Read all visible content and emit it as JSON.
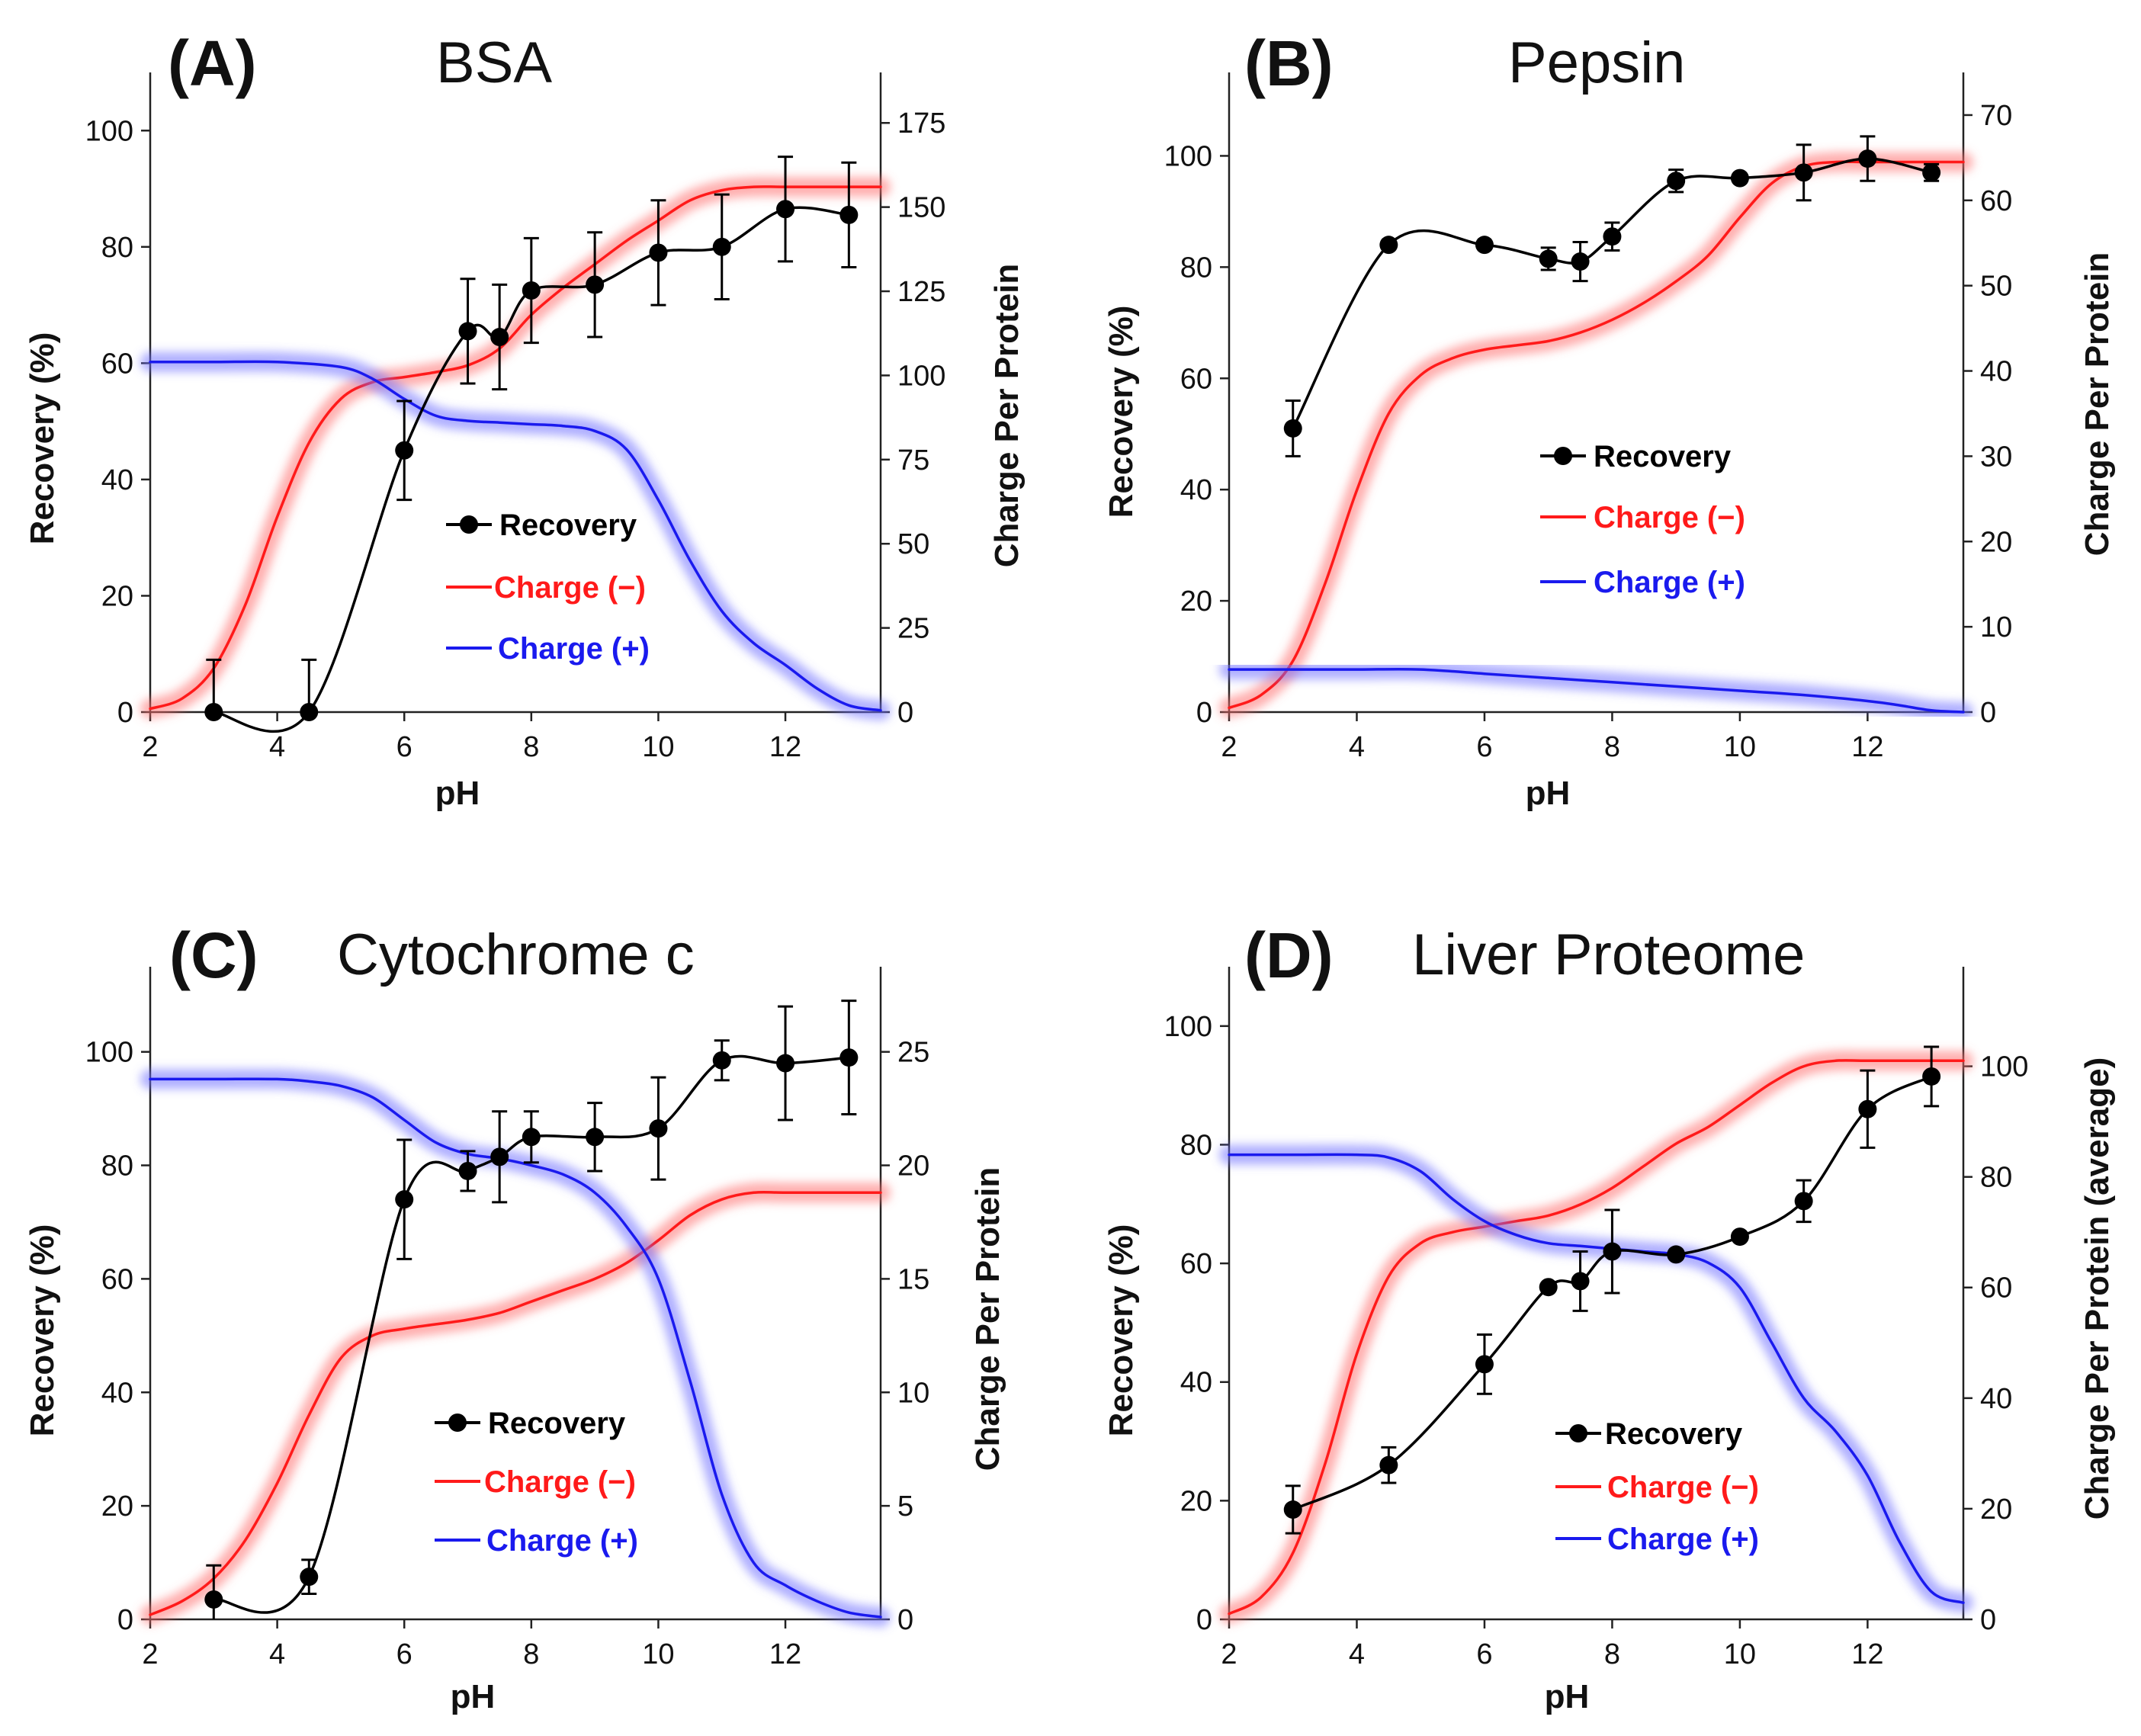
{
  "figure": {
    "legend": {
      "recovery": "Recovery",
      "charge_neg": "Charge (−)",
      "charge_pos": "Charge (+)"
    },
    "colors": {
      "recovery": "#000000",
      "charge_neg": "#ff1a1a",
      "charge_pos": "#1a1aee",
      "charge_neg_glow": "#ff7070",
      "charge_pos_glow": "#7070ff"
    }
  },
  "chart_data": [
    {
      "type": "line",
      "label": "(A)",
      "title": "BSA",
      "xlabel": "pH",
      "ylabel": "Recovery (%)",
      "y2label": "Charge Per Protein",
      "xlim": [
        2,
        13.5
      ],
      "ylim": [
        0,
        110
      ],
      "y2lim": [
        0,
        190
      ],
      "xticks": [
        2,
        4,
        6,
        8,
        10,
        12
      ],
      "yticks": [
        0,
        20,
        40,
        60,
        80,
        100
      ],
      "y2ticks": [
        0,
        25,
        50,
        75,
        100,
        125,
        150,
        175
      ],
      "recovery": {
        "x": [
          3,
          4.5,
          6,
          7,
          7.5,
          8,
          9,
          10,
          11,
          12,
          13
        ],
        "y": [
          0,
          0,
          45,
          65.5,
          64.5,
          72.5,
          73.5,
          79,
          80,
          86.5,
          85.5
        ],
        "err": [
          9,
          9,
          8.5,
          9,
          9,
          9,
          9,
          9,
          9,
          9,
          9
        ]
      },
      "charge_neg": {
        "x": [
          2,
          2.5,
          3,
          3.5,
          4,
          4.5,
          5,
          5.5,
          6,
          6.5,
          7,
          7.5,
          8,
          8.5,
          9,
          9.5,
          10,
          10.5,
          11,
          11.5,
          12,
          13,
          13.5
        ],
        "y": [
          1,
          4,
          13,
          32,
          58,
          80,
          93,
          98,
          99.5,
          101,
          103,
          108,
          118,
          126,
          133,
          140,
          146,
          152,
          155,
          156,
          156,
          156,
          156
        ]
      },
      "charge_pos": {
        "x": [
          2,
          3,
          4,
          5,
          5.5,
          6,
          6.5,
          7,
          7.5,
          8,
          8.5,
          9,
          9.5,
          10,
          10.5,
          11,
          11.5,
          12,
          12.5,
          13,
          13.5
        ],
        "y": [
          104,
          104,
          104,
          102.5,
          99,
          93,
          88,
          86.5,
          86,
          85.5,
          85,
          83.5,
          78,
          63,
          45,
          30,
          20.5,
          14,
          7,
          2,
          0.5
        ]
      }
    },
    {
      "type": "line",
      "label": "(B)",
      "title": "Pepsin",
      "xlabel": "pH",
      "ylabel": "Recovery (%)",
      "y2label": "Charge Per Protein",
      "xlim": [
        2,
        13.5
      ],
      "ylim": [
        0,
        115
      ],
      "y2lim": [
        0,
        75
      ],
      "xticks": [
        2,
        4,
        6,
        8,
        10,
        12
      ],
      "yticks": [
        0,
        20,
        40,
        60,
        80,
        100
      ],
      "y2ticks": [
        0,
        10,
        20,
        30,
        40,
        50,
        60,
        70
      ],
      "recovery": {
        "x": [
          3,
          4.5,
          6,
          7,
          7.5,
          8,
          9,
          10,
          11,
          12,
          13
        ],
        "y": [
          51,
          84,
          84,
          81.5,
          81,
          85.5,
          95.5,
          96,
          97,
          99.5,
          97
        ],
        "err": [
          5,
          0,
          0,
          2,
          3.5,
          2.5,
          2,
          0,
          5,
          4,
          1.5
        ]
      },
      "charge_neg": {
        "x": [
          2,
          2.5,
          3,
          3.5,
          4,
          4.5,
          5,
          5.5,
          6,
          6.5,
          7,
          7.5,
          8,
          8.5,
          9,
          9.5,
          10,
          10.5,
          11,
          11.5,
          12,
          13,
          13.5
        ],
        "y": [
          0.5,
          2,
          6,
          15,
          26,
          35,
          39.5,
          41.5,
          42.5,
          43,
          43.5,
          44.5,
          46,
          48,
          50.5,
          53.5,
          58,
          62,
          64,
          64.5,
          64.5,
          64.5,
          64.5
        ]
      },
      "charge_pos": {
        "x": [
          2,
          3,
          4,
          5,
          6,
          7,
          8,
          9,
          10,
          11,
          12,
          12.5,
          13,
          13.5
        ],
        "y": [
          5,
          5,
          5,
          5,
          4.5,
          4,
          3.5,
          3,
          2.5,
          2,
          1.3,
          0.8,
          0.2,
          0
        ]
      }
    },
    {
      "type": "line",
      "label": "(C)",
      "title": "Cytochrome c",
      "xlabel": "pH",
      "ylabel": "Recovery (%)",
      "y2label": "Charge Per Protein",
      "xlim": [
        2,
        13.5
      ],
      "ylim": [
        0,
        115
      ],
      "y2lim": [
        0,
        28.75
      ],
      "xticks": [
        2,
        4,
        6,
        8,
        10,
        12
      ],
      "yticks": [
        0,
        20,
        40,
        60,
        80,
        100
      ],
      "y2ticks": [
        0,
        5,
        10,
        15,
        20,
        25
      ],
      "recovery": {
        "x": [
          3,
          4.5,
          6,
          7,
          7.5,
          8,
          9,
          10,
          11,
          12,
          13
        ],
        "y": [
          3.5,
          7.5,
          74,
          79,
          81.5,
          85,
          85,
          86.5,
          98.5,
          98,
          99
        ],
        "err": [
          6,
          3,
          10.5,
          3.5,
          8,
          4.5,
          6,
          9,
          3.5,
          10,
          10
        ]
      },
      "charge_neg": {
        "x": [
          2,
          2.5,
          3,
          3.5,
          4,
          4.5,
          5,
          5.5,
          6,
          6.5,
          7,
          7.5,
          8,
          8.5,
          9,
          9.5,
          10,
          10.5,
          11,
          11.5,
          12,
          13,
          13.5
        ],
        "y": [
          0.2,
          0.8,
          1.8,
          3.5,
          6,
          9,
          11.5,
          12.5,
          12.8,
          13,
          13.2,
          13.5,
          14,
          14.5,
          15,
          15.7,
          16.7,
          17.8,
          18.5,
          18.8,
          18.8,
          18.8,
          18.8
        ]
      },
      "charge_pos": {
        "x": [
          2,
          3,
          4,
          4.5,
          5,
          5.5,
          6,
          6.5,
          7,
          7.5,
          8,
          8.5,
          9,
          9.5,
          10,
          10.5,
          11,
          11.5,
          12,
          12.5,
          13,
          13.5
        ],
        "y": [
          23.8,
          23.8,
          23.8,
          23.7,
          23.5,
          23,
          22,
          21,
          20.5,
          20.3,
          20,
          19.6,
          18.8,
          17.3,
          15,
          10.5,
          5.5,
          2.5,
          1.5,
          0.8,
          0.3,
          0.1
        ]
      }
    },
    {
      "type": "line",
      "label": "(D)",
      "title": "Liver Proteome",
      "xlabel": "pH",
      "ylabel": "Recovery (%)",
      "y2label": "Charge Per Protein (average)",
      "xlim": [
        2,
        13.5
      ],
      "ylim": [
        0,
        110
      ],
      "y2lim": [
        0,
        118
      ],
      "xticks": [
        2,
        4,
        6,
        8,
        10,
        12
      ],
      "yticks": [
        0,
        20,
        40,
        60,
        80,
        100
      ],
      "y2ticks": [
        0,
        20,
        40,
        60,
        80,
        100
      ],
      "recovery": {
        "x": [
          3,
          4.5,
          6,
          7,
          7.5,
          8,
          9,
          10,
          11,
          12,
          13
        ],
        "y": [
          18.5,
          26,
          43,
          56,
          57,
          62,
          61.5,
          64.5,
          70.5,
          86,
          91.5
        ],
        "err": [
          4,
          3,
          5,
          0,
          5,
          7,
          0,
          0,
          3.5,
          6.5,
          5
        ]
      },
      "charge_neg": {
        "x": [
          2,
          2.5,
          3,
          3.5,
          4,
          4.5,
          5,
          5.5,
          6,
          6.5,
          7,
          7.5,
          8,
          8.5,
          9,
          9.5,
          10,
          10.5,
          11,
          11.5,
          12,
          13,
          13.5
        ],
        "y": [
          1,
          4,
          12,
          28,
          48,
          62,
          68,
          70,
          71,
          72,
          73,
          75,
          78,
          82,
          86,
          89,
          93,
          97,
          100,
          101,
          101,
          101,
          101
        ]
      },
      "charge_pos": {
        "x": [
          2,
          3,
          4,
          4.5,
          5,
          5.5,
          6,
          6.5,
          7,
          7.5,
          8,
          8.5,
          9,
          9.5,
          10,
          10.5,
          11,
          11.5,
          12,
          12.5,
          13,
          13.5
        ],
        "y": [
          84,
          84,
          84,
          83.5,
          81,
          76,
          72,
          69.5,
          68,
          67.5,
          67,
          66.5,
          66,
          64.5,
          60,
          50,
          40,
          34,
          26,
          14,
          5,
          3
        ]
      }
    }
  ]
}
